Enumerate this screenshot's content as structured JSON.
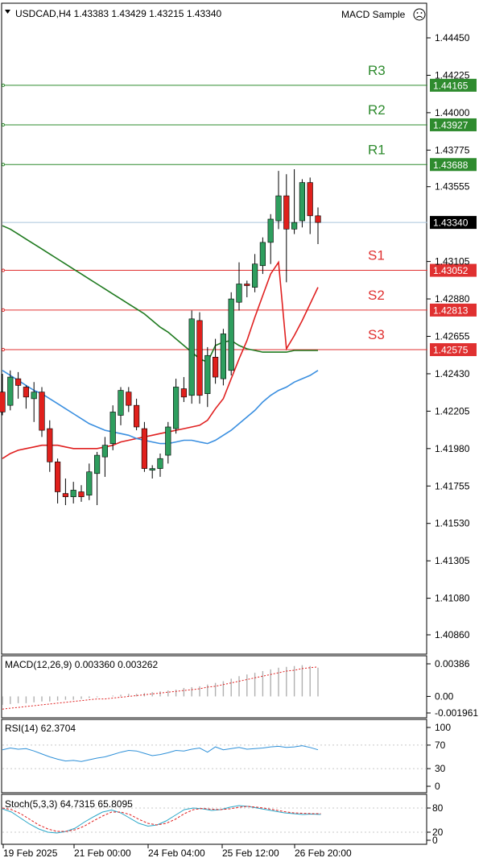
{
  "header": {
    "symbol_line": "USDCAD,H4  1.43383 1.43429 1.43215 1.43340",
    "expert": "MACD Sample",
    "expert_icon": "sad-face-icon"
  },
  "chart_data": {
    "type": "candlestick",
    "price_axis": {
      "ticks": [
        "1.44450",
        "1.44225",
        "1.44000",
        "1.43775",
        "1.43555",
        "1.43105",
        "1.42880",
        "1.42655",
        "1.42430",
        "1.42205",
        "1.41980",
        "1.41755",
        "1.41530",
        "1.41305",
        "1.41080",
        "1.40860"
      ],
      "current_price": "1.43340"
    },
    "time_axis": [
      "19 Feb 2025",
      "21 Feb 00:00",
      "24 Feb 04:00",
      "25 Feb 12:00",
      "26 Feb 20:00"
    ],
    "levels": [
      {
        "name": "R3",
        "price": "1.44165",
        "color": "#2e8b2e"
      },
      {
        "name": "R2",
        "price": "1.43927",
        "color": "#2e8b2e"
      },
      {
        "name": "R1",
        "price": "1.43688",
        "color": "#2e8b2e"
      },
      {
        "name": "S1",
        "price": "1.43052",
        "color": "#e03030"
      },
      {
        "name": "S2",
        "price": "1.42813",
        "color": "#e03030"
      },
      {
        "name": "S3",
        "price": "1.42575",
        "color": "#e03030"
      }
    ],
    "candles": [
      [
        1.4232,
        1.4243,
        1.4218,
        1.422
      ],
      [
        1.4224,
        1.4245,
        1.4221,
        1.4241
      ],
      [
        1.424,
        1.4244,
        1.4228,
        1.4236
      ],
      [
        1.4235,
        1.4236,
        1.4222,
        1.4229
      ],
      [
        1.4228,
        1.4238,
        1.4214,
        1.4232
      ],
      [
        1.4232,
        1.4235,
        1.4205,
        1.4209
      ],
      [
        1.421,
        1.4215,
        1.4184,
        1.419
      ],
      [
        1.419,
        1.4192,
        1.4165,
        1.4172
      ],
      [
        1.4171,
        1.418,
        1.4164,
        1.4169
      ],
      [
        1.4169,
        1.4178,
        1.4165,
        1.4173
      ],
      [
        1.4172,
        1.4176,
        1.4166,
        1.4169
      ],
      [
        1.417,
        1.4189,
        1.4167,
        1.4184
      ],
      [
        1.4183,
        1.4196,
        1.4164,
        1.4194
      ],
      [
        1.4193,
        1.4205,
        1.4181,
        1.42
      ],
      [
        1.4201,
        1.4224,
        1.4197,
        1.422
      ],
      [
        1.4218,
        1.4235,
        1.4212,
        1.4233
      ],
      [
        1.4232,
        1.4235,
        1.422,
        1.4224
      ],
      [
        1.4224,
        1.4228,
        1.4209,
        1.4211
      ],
      [
        1.421,
        1.4214,
        1.4184,
        1.4186
      ],
      [
        1.4185,
        1.4188,
        1.418,
        1.4186
      ],
      [
        1.4186,
        1.4195,
        1.4181,
        1.4192
      ],
      [
        1.4194,
        1.4214,
        1.4189,
        1.4211
      ],
      [
        1.421,
        1.424,
        1.4207,
        1.4235
      ],
      [
        1.4234,
        1.4241,
        1.4226,
        1.4229
      ],
      [
        1.423,
        1.4281,
        1.4225,
        1.4276
      ],
      [
        1.4275,
        1.428,
        1.4225,
        1.423
      ],
      [
        1.4231,
        1.4259,
        1.4223,
        1.4254
      ],
      [
        1.4253,
        1.4264,
        1.4237,
        1.4241
      ],
      [
        1.424,
        1.427,
        1.4236,
        1.4267
      ],
      [
        1.4245,
        1.4292,
        1.4242,
        1.4288
      ],
      [
        1.4286,
        1.431,
        1.4281,
        1.4297
      ],
      [
        1.4297,
        1.4299,
        1.4289,
        1.4296
      ],
      [
        1.4295,
        1.4315,
        1.4292,
        1.4309
      ],
      [
        1.4308,
        1.4325,
        1.4303,
        1.4322
      ],
      [
        1.4322,
        1.4339,
        1.4309,
        1.4336
      ],
      [
        1.4335,
        1.4365,
        1.433,
        1.435
      ],
      [
        1.435,
        1.4363,
        1.4298,
        1.433
      ],
      [
        1.433,
        1.4366,
        1.4327,
        1.4334
      ],
      [
        1.4335,
        1.436,
        1.4331,
        1.4358
      ],
      [
        1.4358,
        1.4361,
        1.4327,
        1.4338
      ],
      [
        1.4338,
        1.4343,
        1.4321,
        1.4334
      ]
    ],
    "ma_slow": [
      1.4332,
      1.433,
      1.4327,
      1.4324,
      1.4321,
      1.4318,
      1.4315,
      1.4312,
      1.4309,
      1.4306,
      1.4303,
      1.43,
      1.4297,
      1.4294,
      1.4291,
      1.4288,
      1.4285,
      1.4282,
      1.4279,
      1.4275,
      1.4271,
      1.4268,
      1.4264,
      1.426,
      1.4256,
      1.4252,
      1.425,
      1.426,
      1.4262,
      1.4263,
      1.426,
      1.4258,
      1.4257,
      1.4256,
      1.4256,
      1.4256,
      1.4256,
      1.4257,
      1.4257,
      1.4257,
      1.4257
    ],
    "ma_mid": [
      1.4192,
      1.4195,
      1.4197,
      1.4198,
      1.4199,
      1.42,
      1.42,
      1.42,
      1.4199,
      1.4198,
      1.4198,
      1.4198,
      1.4198,
      1.4199,
      1.42,
      1.4202,
      1.4203,
      1.4204,
      1.4205,
      1.4206,
      1.4207,
      1.4208,
      1.4209,
      1.421,
      1.4211,
      1.4212,
      1.4215,
      1.4222,
      1.4228,
      1.424,
      1.4252,
      1.4263,
      1.4277,
      1.429,
      1.4303,
      1.431,
      1.4258,
      1.4266,
      1.4275,
      1.4285,
      1.4295
    ],
    "ma_fast": [
      1.4245,
      1.4242,
      1.4239,
      1.4236,
      1.4233,
      1.4231,
      1.4228,
      1.4225,
      1.4222,
      1.4219,
      1.4216,
      1.4213,
      1.4211,
      1.4209,
      1.4208,
      1.4207,
      1.4206,
      1.4204,
      1.4203,
      1.4202,
      1.4201,
      1.4201,
      1.4202,
      1.4203,
      1.4203,
      1.4202,
      1.4201,
      1.4203,
      1.4206,
      1.4209,
      1.4213,
      1.4217,
      1.4221,
      1.4226,
      1.423,
      1.4233,
      1.4235,
      1.4238,
      1.424,
      1.4242,
      1.4245
    ],
    "macd": {
      "label": "MACD(12,26,9) 0.003360 0.003262",
      "ticks": [
        "0.00386",
        "0.00",
        "-0.001961"
      ],
      "hist": [
        -0.001,
        -0.0009,
        -0.0008,
        -0.0008,
        -0.0007,
        -0.0006,
        -0.0006,
        -0.0005,
        -0.0004,
        -0.0004,
        -0.0003,
        -0.0002,
        -0.0001,
        0.0,
        0.0001,
        0.0002,
        0.0003,
        0.0003,
        0.0004,
        0.0005,
        0.0006,
        0.0007,
        0.0008,
        0.001,
        0.0011,
        0.0012,
        0.0014,
        0.0016,
        0.0018,
        0.0021,
        0.0024,
        0.0026,
        0.0028,
        0.003,
        0.0032,
        0.0034,
        0.0035,
        0.0036,
        0.0037,
        0.0036,
        0.0034
      ],
      "signal": [
        -0.0015,
        -0.0014,
        -0.0013,
        -0.0012,
        -0.0011,
        -0.001,
        -0.0009,
        -0.0008,
        -0.0007,
        -0.0006,
        -0.0005,
        -0.0004,
        -0.0003,
        -0.0003,
        -0.0002,
        -0.0001,
        0.0,
        0.0001,
        0.0002,
        0.0003,
        0.0004,
        0.0005,
        0.0006,
        0.0007,
        0.0008,
        0.0009,
        0.0011,
        0.0012,
        0.0014,
        0.0016,
        0.0018,
        0.002,
        0.0022,
        0.0024,
        0.0026,
        0.0028,
        0.003,
        0.0031,
        0.0033,
        0.0034,
        0.0035
      ]
    },
    "rsi": {
      "label": "RSI(14) 62.3704",
      "ticks": [
        "100",
        "70",
        "30",
        "0"
      ],
      "values": [
        62,
        65,
        63,
        64,
        60,
        55,
        50,
        46,
        43,
        44,
        42,
        45,
        48,
        50,
        54,
        58,
        61,
        60,
        56,
        52,
        54,
        57,
        61,
        60,
        63,
        65,
        58,
        67,
        62,
        64,
        66,
        63,
        64,
        65,
        67,
        68,
        66,
        67,
        69,
        66,
        62
      ]
    },
    "stoch": {
      "label": "Stoch(5,3,3) 64.7315 65.8095",
      "ticks": [
        "80",
        "20",
        "0"
      ],
      "k": [
        78,
        70,
        55,
        40,
        28,
        20,
        18,
        22,
        30,
        45,
        58,
        70,
        75,
        68,
        55,
        42,
        35,
        38,
        48,
        62,
        76,
        80,
        78,
        74,
        76,
        82,
        86,
        84,
        80,
        76,
        72,
        68,
        66,
        64,
        65,
        64
      ],
      "d": [
        80,
        76,
        66,
        52,
        38,
        28,
        22,
        22,
        26,
        35,
        48,
        60,
        70,
        70,
        64,
        52,
        42,
        38,
        42,
        52,
        66,
        76,
        79,
        77,
        76,
        78,
        82,
        84,
        82,
        79,
        75,
        71,
        68,
        67,
        66,
        66
      ]
    }
  }
}
